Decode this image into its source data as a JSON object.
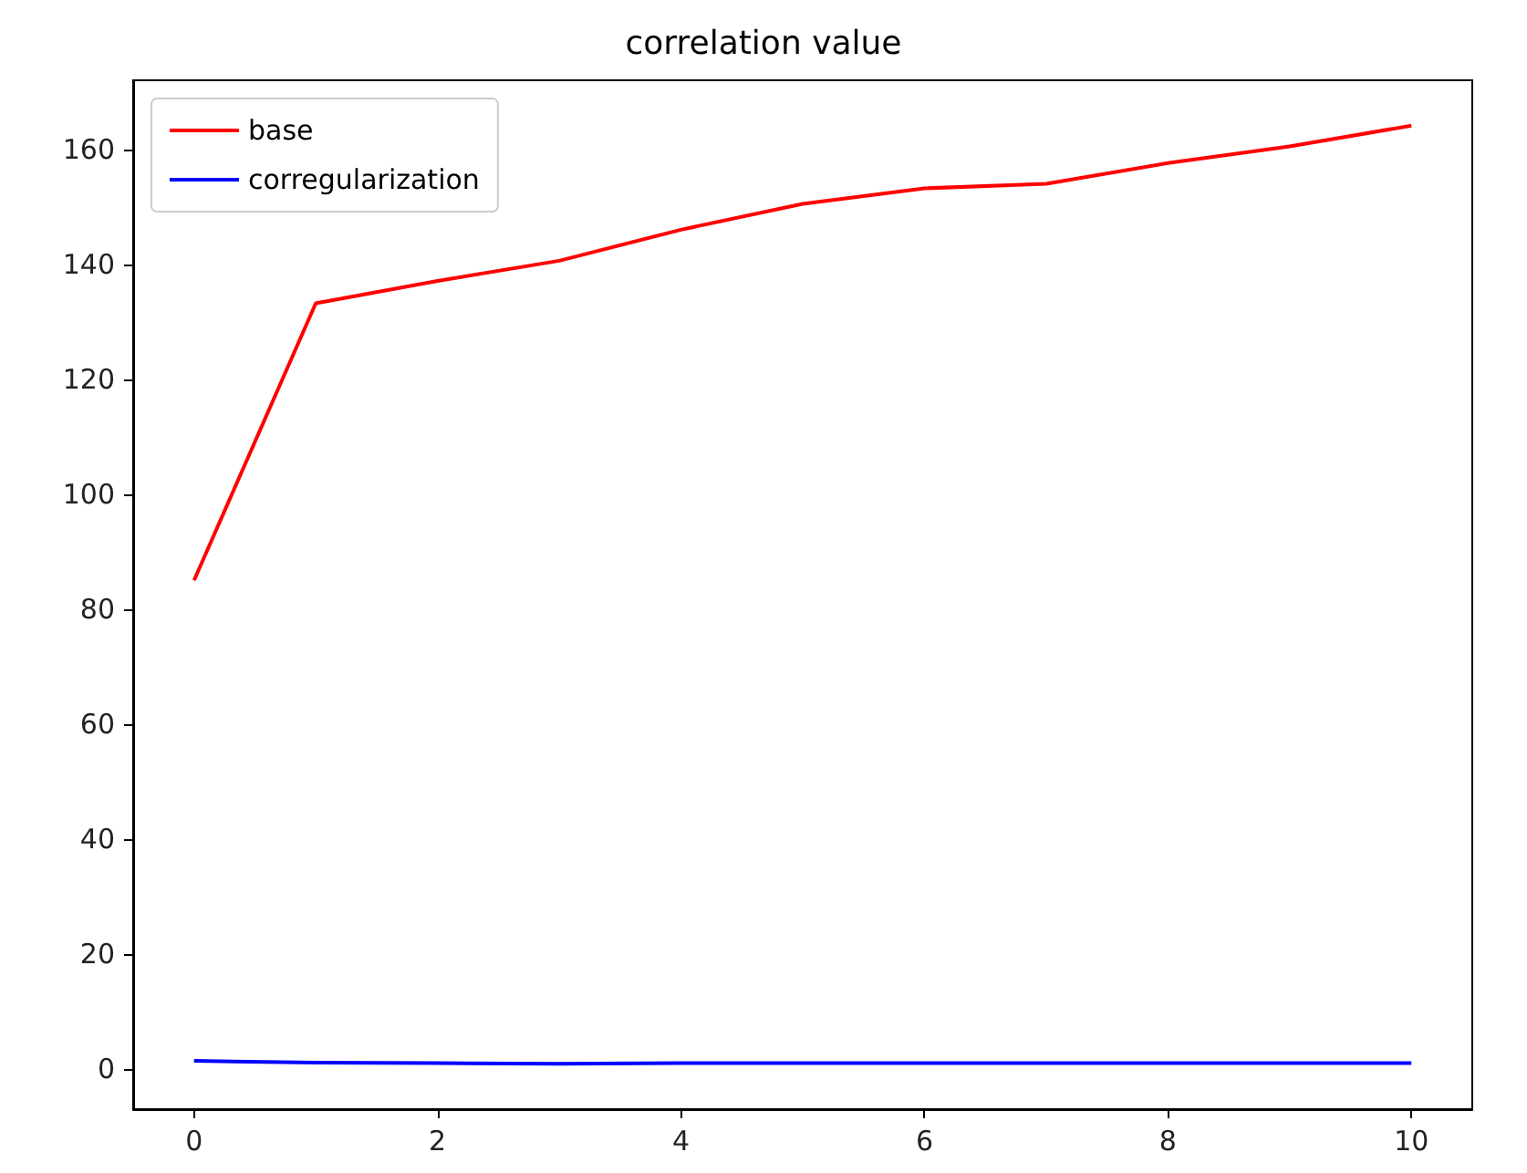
{
  "chart_data": {
    "type": "line",
    "title": "correlation value",
    "x": [
      0,
      1,
      2,
      3,
      4,
      5,
      6,
      7,
      8,
      9,
      10
    ],
    "series": [
      {
        "name": "base",
        "color": "#ff0000",
        "values": [
          85,
          133.2,
          137.1,
          140.6,
          146,
          150.5,
          153.2,
          154,
          157.6,
          160.5,
          164.1
        ]
      },
      {
        "name": "corregularization",
        "color": "#0000ff",
        "values": [
          1.4,
          1.1,
          1.0,
          0.9,
          1.0,
          1.0,
          1.0,
          1.0,
          1.0,
          1.0,
          1.0
        ]
      }
    ],
    "xlim": [
      -0.5,
      10.5
    ],
    "xticks": [
      0,
      2,
      4,
      6,
      8,
      10
    ],
    "ylim": [
      -7,
      172
    ],
    "yticks": [
      0,
      20,
      40,
      60,
      80,
      100,
      120,
      140,
      160
    ],
    "grid": false,
    "legend": "top left",
    "marker": "none",
    "line_style": "solid"
  }
}
